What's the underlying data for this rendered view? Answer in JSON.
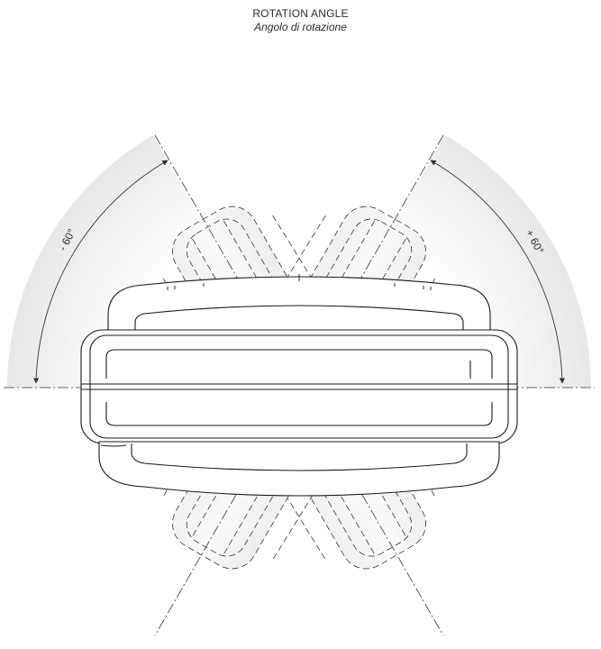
{
  "title": "ROTATION ANGLE",
  "subtitle": "Angolo di rotazione",
  "angles": {
    "left_label": "- 60°",
    "right_label": "+ 60°",
    "left_value_deg": -60,
    "right_value_deg": 60
  },
  "colors": {
    "line": "#1a1a1a",
    "sector_fill": "#ececec",
    "ghost_fill": "#f3f3f3"
  }
}
